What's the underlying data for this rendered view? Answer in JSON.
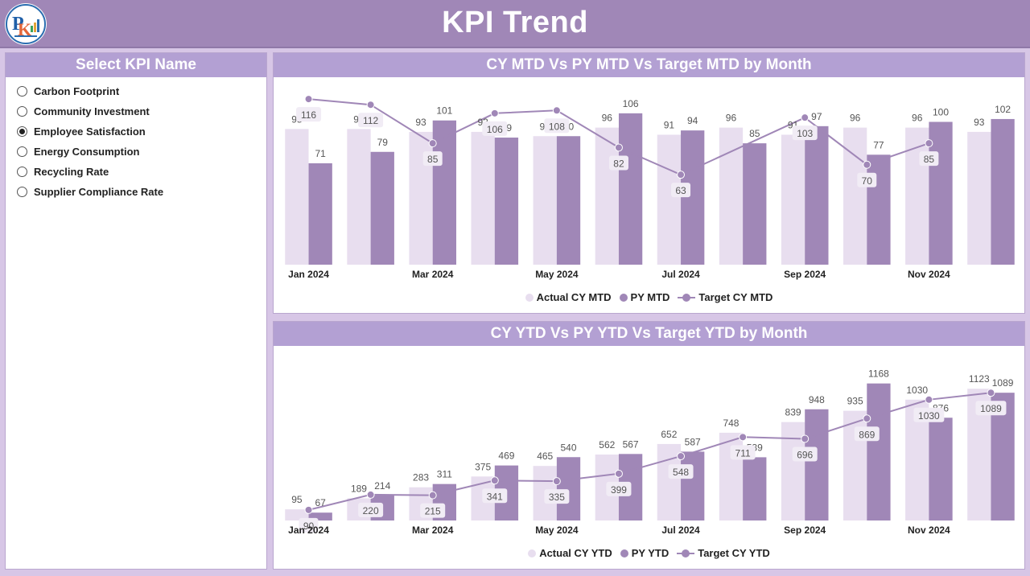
{
  "header": {
    "title": "KPI Trend"
  },
  "colors": {
    "header": "#a087b7",
    "panel_title": "#b3a0d3",
    "actual": "#e8deef",
    "py": "#a087b7",
    "target": "#a087b7"
  },
  "slicer": {
    "title": "Select KPI Name",
    "selected": "Employee Satisfaction",
    "options": [
      {
        "label": "Carbon Footprint",
        "checked": false
      },
      {
        "label": "Community Investment",
        "checked": false
      },
      {
        "label": "Employee Satisfaction",
        "checked": true
      },
      {
        "label": "Energy Consumption",
        "checked": false
      },
      {
        "label": "Recycling Rate",
        "checked": false
      },
      {
        "label": "Supplier Compliance Rate",
        "checked": false
      }
    ]
  },
  "mtd": {
    "title": "CY MTD Vs PY MTD Vs Target MTD by Month",
    "legend": {
      "actual": "Actual CY MTD",
      "py": "PY MTD",
      "target": "Target CY MTD"
    }
  },
  "ytd": {
    "title": "CY YTD Vs PY YTD Vs Target YTD by Month",
    "legend": {
      "actual": "Actual CY YTD",
      "py": "PY YTD",
      "target": "Target CY YTD"
    }
  },
  "chart_data": [
    {
      "type": "bar",
      "title": "CY MTD Vs PY MTD Vs Target MTD by Month",
      "categories": [
        "Jan 2024",
        "Feb 2024",
        "Mar 2024",
        "Apr 2024",
        "May 2024",
        "Jun 2024",
        "Jul 2024",
        "Aug 2024",
        "Sep 2024",
        "Oct 2024",
        "Nov 2024",
        "Dec 2024"
      ],
      "tick_labels": [
        "Jan 2024",
        "",
        "Mar 2024",
        "",
        "May 2024",
        "",
        "Jul 2024",
        "",
        "Sep 2024",
        "",
        "Nov 2024",
        ""
      ],
      "ylim": [
        0,
        120
      ],
      "series": [
        {
          "name": "Actual CY MTD",
          "kind": "bar",
          "values": [
            95,
            95,
            93,
            93,
            90,
            96,
            91,
            96,
            91,
            96,
            96,
            93
          ]
        },
        {
          "name": "PY MTD",
          "kind": "bar",
          "values": [
            71,
            79,
            101,
            89,
            90,
            106,
            94,
            85,
            97,
            77,
            100,
            102
          ]
        },
        {
          "name": "Target CY MTD",
          "kind": "line",
          "values": [
            116,
            112,
            85,
            106,
            108,
            82,
            63,
            null,
            103,
            70,
            85,
            null
          ]
        }
      ]
    },
    {
      "type": "bar",
      "title": "CY YTD Vs PY YTD Vs Target YTD by Month",
      "categories": [
        "Jan 2024",
        "Feb 2024",
        "Mar 2024",
        "Apr 2024",
        "May 2024",
        "Jun 2024",
        "Jul 2024",
        "Aug 2024",
        "Sep 2024",
        "Oct 2024",
        "Nov 2024",
        "Dec 2024"
      ],
      "tick_labels": [
        "Jan 2024",
        "",
        "Mar 2024",
        "",
        "May 2024",
        "",
        "Jul 2024",
        "",
        "Sep 2024",
        "",
        "Nov 2024",
        ""
      ],
      "ylim": [
        0,
        1200
      ],
      "series": [
        {
          "name": "Actual CY YTD",
          "kind": "bar",
          "values": [
            95,
            189,
            283,
            375,
            465,
            562,
            652,
            748,
            839,
            935,
            1030,
            1123
          ]
        },
        {
          "name": "PY YTD",
          "kind": "bar",
          "values": [
            67,
            214,
            311,
            469,
            540,
            567,
            587,
            539,
            948,
            1168,
            876,
            1089
          ]
        },
        {
          "name": "Target CY YTD",
          "kind": "line",
          "values": [
            90,
            220,
            215,
            341,
            335,
            399,
            548,
            711,
            696,
            869,
            1030,
            1089
          ]
        }
      ]
    }
  ]
}
